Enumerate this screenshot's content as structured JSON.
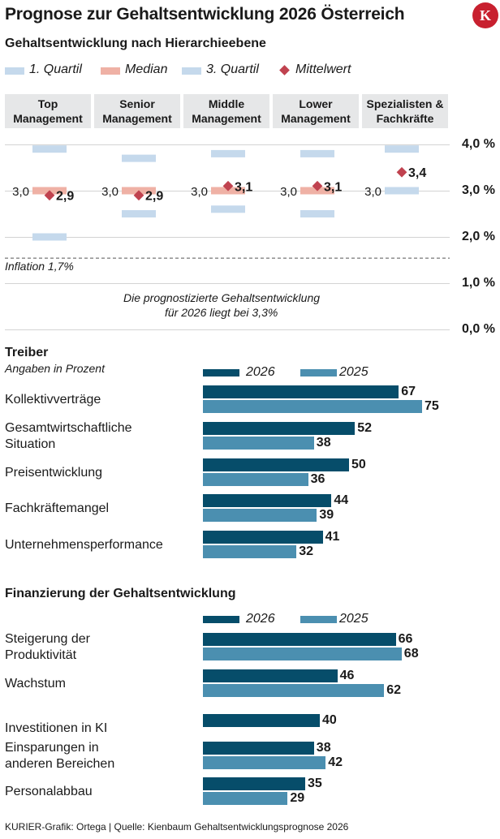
{
  "title": "Prognose zur Gehaltsentwicklung 2026 Österreich",
  "logo": "K",
  "chart_data": [
    {
      "type": "range",
      "title": "Gehaltsentwicklung nach Hierarchieebene",
      "legend": [
        "1. Quartil",
        "Median",
        "3. Quartil",
        "Mittelwert"
      ],
      "yticks": [
        "4,0 %",
        "3,0 %",
        "2,0 %",
        "1,0 %",
        "0,0 %"
      ],
      "ylim": [
        0,
        4
      ],
      "categories": [
        "Top Management",
        "Senior Management",
        "Middle Management",
        "Lower Management",
        "Spezialisten & Fachkräfte"
      ],
      "q1": [
        2.0,
        2.5,
        2.6,
        2.5,
        3.0
      ],
      "median": [
        3.0,
        3.0,
        3.0,
        3.0,
        3.0
      ],
      "q3": [
        3.9,
        3.7,
        3.8,
        3.8,
        3.9
      ],
      "mean": [
        2.9,
        2.9,
        3.1,
        3.1,
        3.4
      ],
      "median_labels": [
        "3,0",
        "3,0",
        "3,0",
        "3,0",
        "3,0"
      ],
      "mean_labels": [
        "2,9",
        "2,9",
        "3,1",
        "3,1",
        "3,4"
      ],
      "inflation_value": 1.7,
      "inflation_label": "Inflation 1,7%",
      "note_line1": "Die prognostizierte Gehaltsentwicklung",
      "note_line2": "für 2026 liegt bei 3,3%"
    },
    {
      "type": "bar",
      "title": "Treiber",
      "subtitle": "Angaben in Prozent",
      "categories": [
        [
          "Kollektivverträge"
        ],
        [
          "Gesamtwirtschaftliche",
          "Situation"
        ],
        [
          "Preisentwicklung"
        ],
        [
          "Fachkräftemangel"
        ],
        [
          "Unternehmensperformance"
        ]
      ],
      "series": [
        {
          "name": "2026",
          "values": [
            67,
            52,
            50,
            44,
            41
          ]
        },
        {
          "name": "2025",
          "values": [
            75,
            38,
            36,
            39,
            32
          ]
        }
      ]
    },
    {
      "type": "bar",
      "title": "Finanzierung der Gehaltsentwicklung",
      "categories": [
        [
          "Steigerung der",
          "Produktivität"
        ],
        [
          "Wachstum"
        ],
        [
          "Investitionen in KI"
        ],
        [
          "Einsparungen in",
          "anderen Bereichen"
        ],
        [
          "Personalabbau"
        ]
      ],
      "series": [
        {
          "name": "2026",
          "values": [
            66,
            46,
            40,
            38,
            35
          ]
        },
        {
          "name": "2025",
          "values": [
            68,
            62,
            null,
            42,
            29
          ]
        }
      ]
    }
  ],
  "colors": {
    "q": "#c5d9ec",
    "median": "#efb1a5",
    "mean": "#c0424f",
    "s2026": "#064d6a",
    "s2025": "#4b8fb0",
    "header_bg": "#e6e7e8",
    "logo": "#c8202f"
  },
  "footer": "KURIER-Grafik: Ortega | Quelle: Kienbaum Gehaltsentwicklungsprognose 2026"
}
